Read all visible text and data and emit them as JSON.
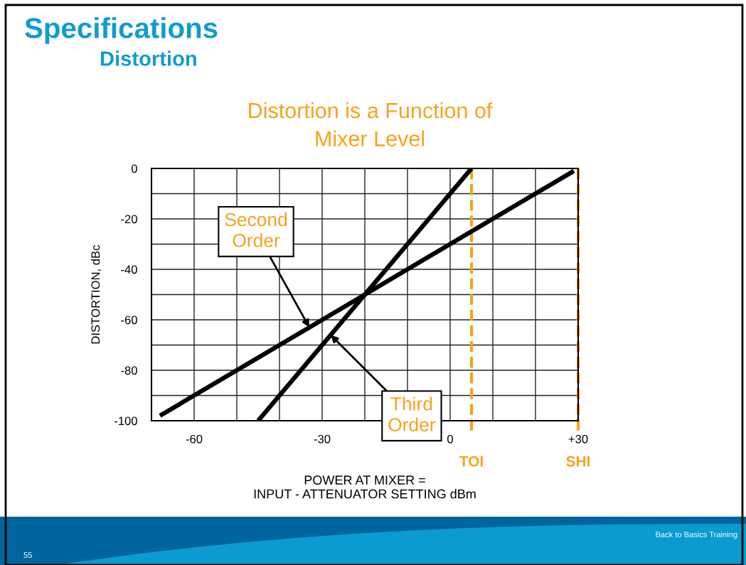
{
  "chart_data": {
    "type": "line",
    "title": "Specifications",
    "subtitle": "Distortion",
    "xlabel": "POWER AT MIXER =\nINPUT - ATTENUATOR SETTING dBm",
    "ylabel": "DISTORTION, dBc",
    "series": [
      {
        "color": "#000000",
        "x": [
          -68,
          29
        ],
        "values": [
          -98,
          -1
        ]
      },
      {
        "color": "#000000",
        "x": [
          -45,
          5
        ],
        "values": [
          -100,
          0
        ]
      }
    ],
    "xlim": [
      -70,
      30
    ],
    "ylim": [
      -100,
      0
    ],
    "xticks": [
      {
        "value": -70,
        "label": null
      },
      -60,
      {
        "value": -50,
        "label": null
      },
      {
        "value": -40,
        "label": null
      },
      -30,
      {
        "value": -20,
        "label": null
      },
      {
        "value": -10,
        "label": null
      },
      0,
      {
        "value": 10,
        "label": null
      },
      {
        "value": 20,
        "label": null
      },
      {
        "value": 30,
        "label": "+30"
      }
    ],
    "yticks": [
      0,
      {
        "value": -10,
        "label": null
      },
      -20,
      {
        "value": -30,
        "label": null
      },
      -40,
      {
        "value": -50,
        "label": null
      },
      -60,
      {
        "value": -70,
        "label": null
      },
      -80,
      {
        "value": -90,
        "label": null
      },
      -100
    ],
    "grid": true,
    "ref_lines": [
      {
        "axis": "x",
        "value": 5,
        "label": "TOI",
        "color": "#f9a11b",
        "line_style": "dashed"
      },
      {
        "axis": "x",
        "value": 30,
        "label": "SHI",
        "color": "#f9a11b",
        "line_style": "dashed"
      }
    ],
    "annotations": [
      "Distortion is a Function of\nMixer Level",
      {
        "text": "Second\nOrder",
        "x": -33,
        "y": -63
      },
      {
        "text": "Third\nOrder",
        "x": -28,
        "y": -66
      },
      "Back to Basics Training",
      "55"
    ]
  }
}
